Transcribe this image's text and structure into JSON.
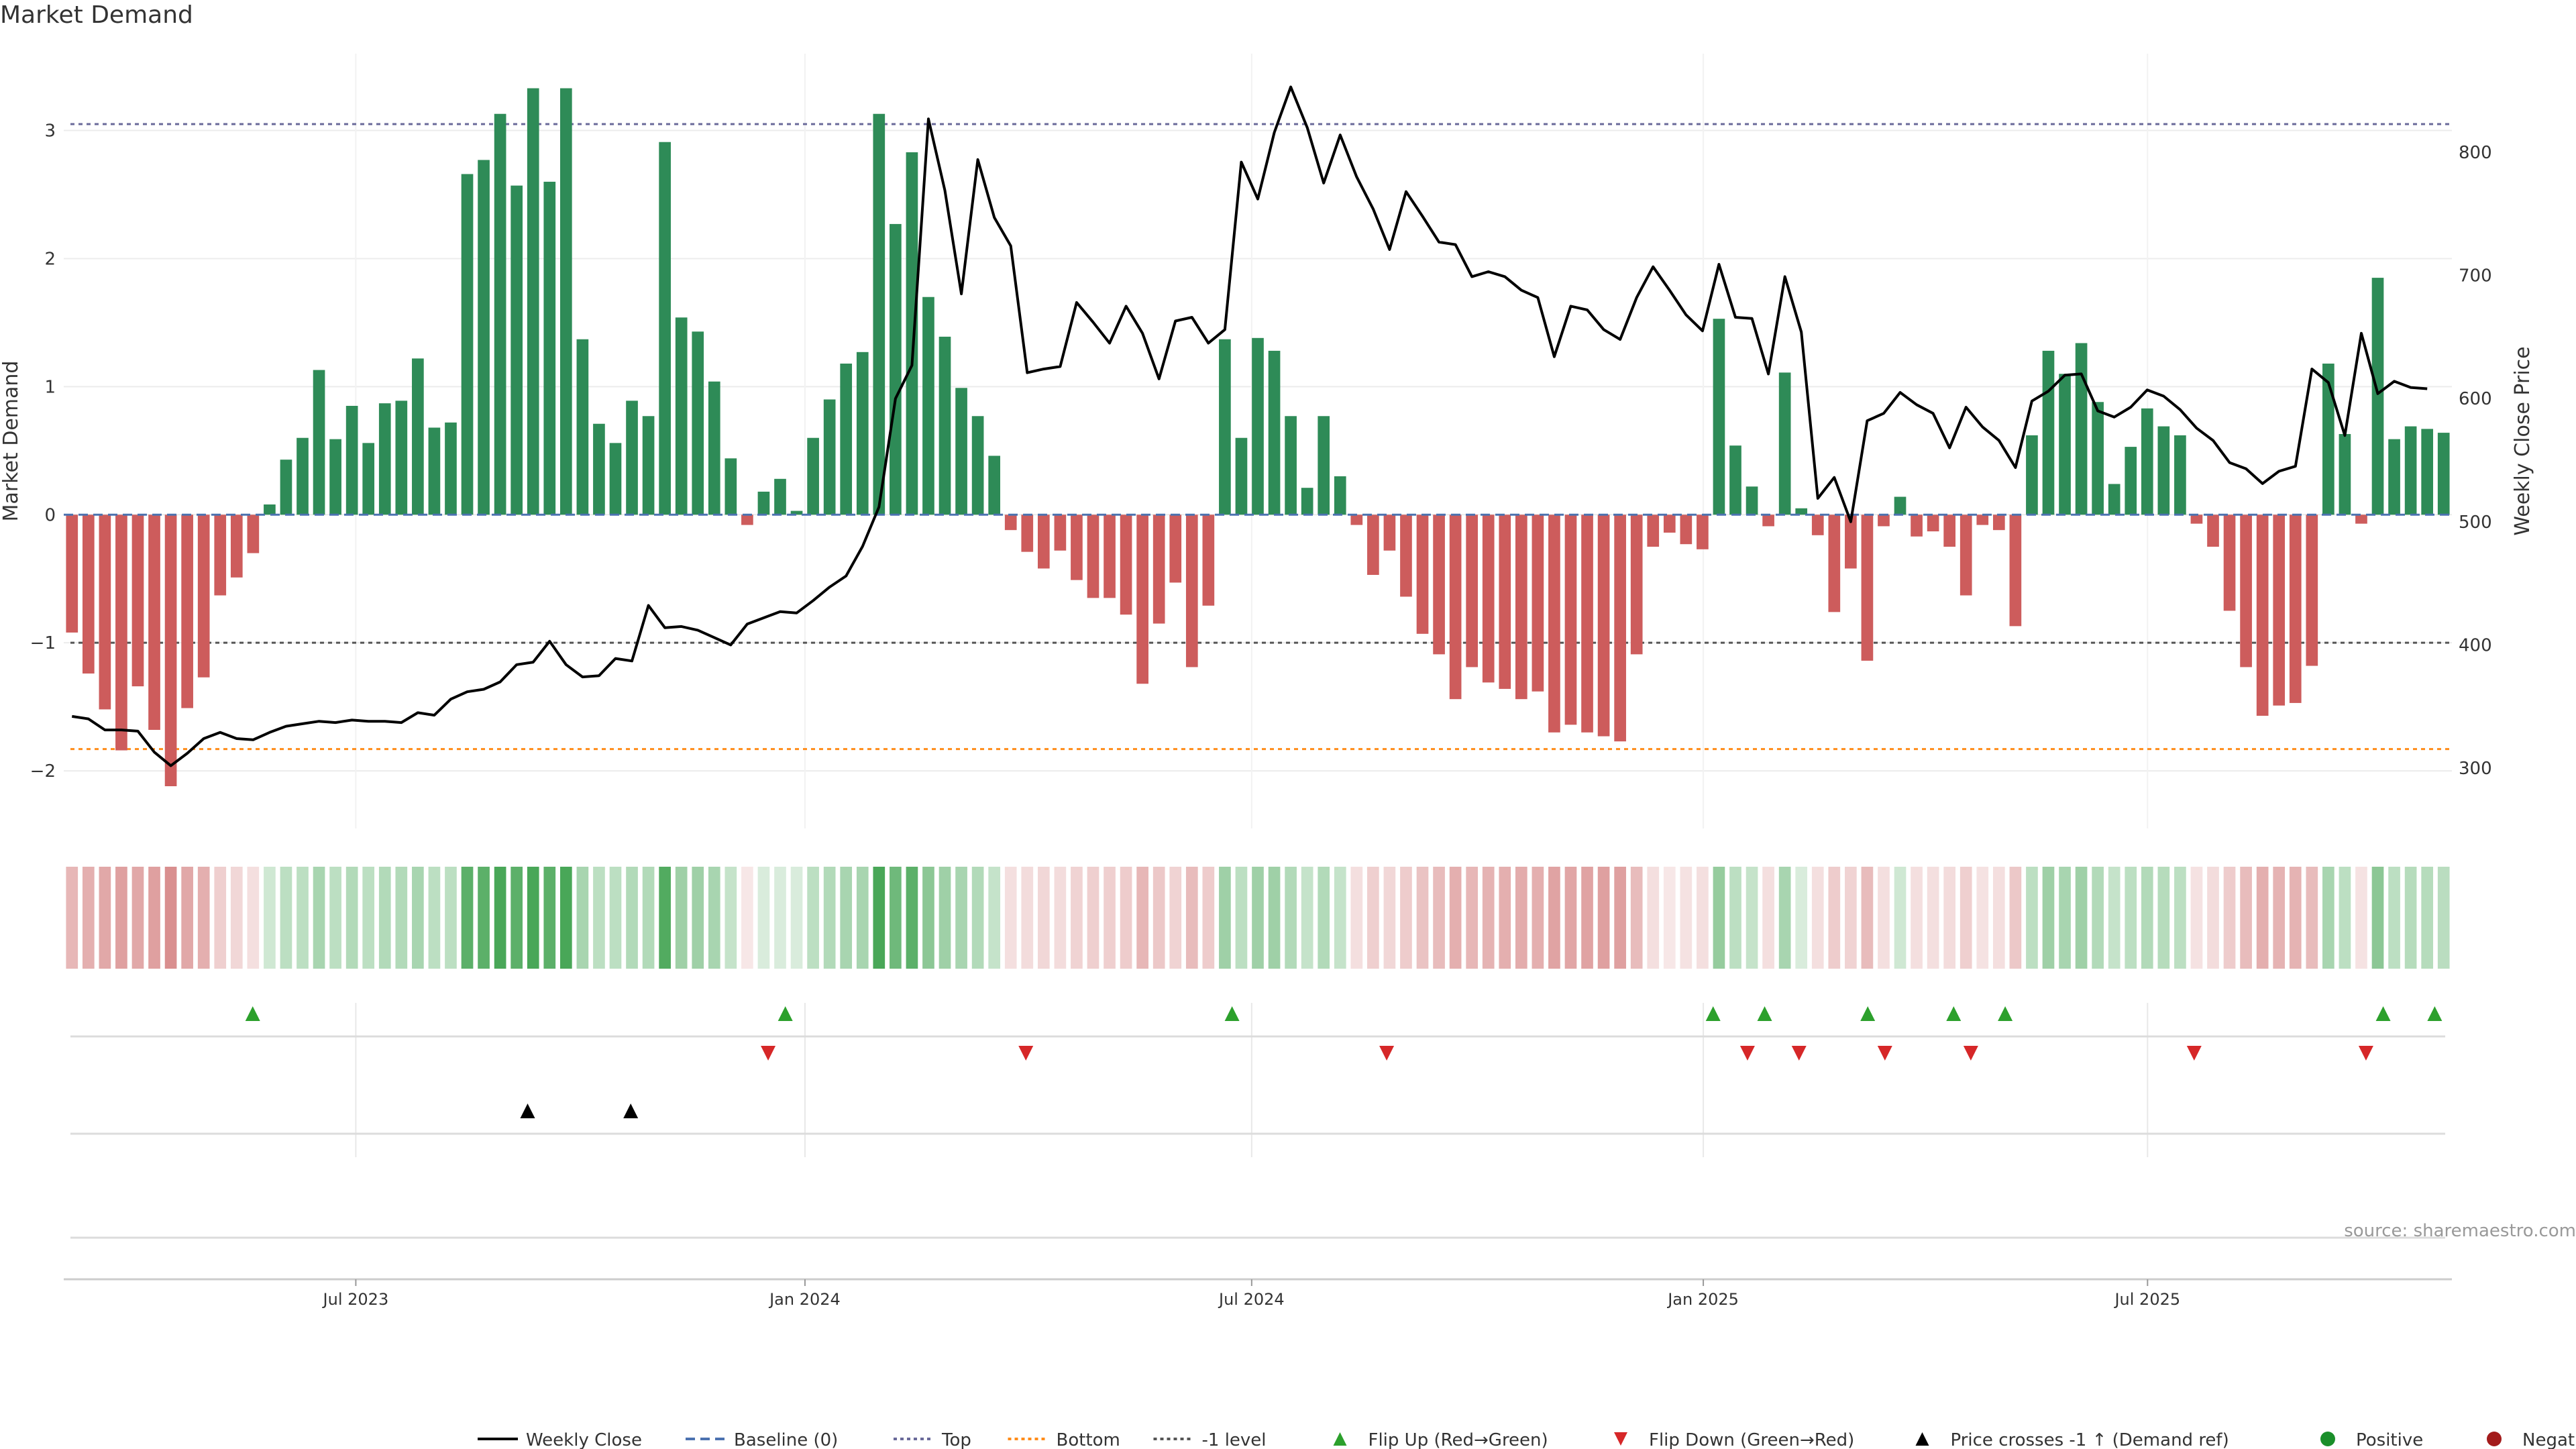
{
  "page": {
    "title": "Market Demand",
    "source": "source: sharemaestro.com"
  },
  "chart_data": {
    "type": "bar",
    "title": "Market Demand",
    "ylabel": "Market Demand",
    "y2label": "Weekly Close Price",
    "ylim": [
      -2.45,
      3.6
    ],
    "y2lim": [
      251,
      880
    ],
    "yticks": [
      -2,
      -1,
      0,
      1,
      2,
      3
    ],
    "y2ticks": [
      300,
      400,
      500,
      600,
      700,
      800
    ],
    "x_start": "2023-03-05",
    "x_end": "2025-11-02",
    "x_tick_labels": [
      {
        "date": "2023-07-02",
        "label": "Jul 2023"
      },
      {
        "date": "2024-01-01",
        "label": "Jan 2024"
      },
      {
        "date": "2024-07-01",
        "label": "Jul 2024"
      },
      {
        "date": "2025-01-01",
        "label": "Jan 2025"
      },
      {
        "date": "2025-07-01",
        "label": "Jul 2025"
      }
    ],
    "reference_lines": {
      "top": 3.05,
      "bottom": -1.83,
      "minus_one": -1.0,
      "baseline": 0
    },
    "first_week": "2023-03-05",
    "week_step_days": 7,
    "demand": [
      -0.92,
      -1.24,
      -1.52,
      -1.84,
      -1.34,
      -1.68,
      -2.12,
      -1.51,
      -1.27,
      -0.63,
      -0.49,
      -0.3,
      0.08,
      0.43,
      0.6,
      1.13,
      0.59,
      0.85,
      0.56,
      0.87,
      0.89,
      1.22,
      0.68,
      0.72,
      2.66,
      2.77,
      3.13,
      2.57,
      3.33,
      2.6,
      3.33,
      1.37,
      0.71,
      0.56,
      0.89,
      0.77,
      2.91,
      1.54,
      1.43,
      1.04,
      0.44,
      -0.08,
      0.18,
      0.28,
      0.03,
      0.6,
      0.9,
      1.18,
      1.27,
      3.13,
      2.27,
      2.83,
      1.7,
      1.39,
      0.99,
      0.77,
      0.46,
      -0.12,
      -0.29,
      -0.42,
      -0.28,
      -0.51,
      -0.65,
      -0.65,
      -0.78,
      -1.32,
      -0.85,
      -0.53,
      -1.19,
      -0.71,
      1.37,
      0.6,
      1.38,
      1.28,
      0.77,
      0.21,
      0.77,
      0.3,
      -0.08,
      -0.47,
      -0.28,
      -0.64,
      -0.93,
      -1.09,
      -1.44,
      -1.19,
      -1.31,
      -1.36,
      -1.44,
      -1.38,
      -1.7,
      -1.64,
      -1.7,
      -1.73,
      -1.77,
      -1.09,
      -0.25,
      -0.14,
      -0.23,
      -0.27,
      1.53,
      0.54,
      0.22,
      -0.09,
      1.11,
      0.05,
      -0.16,
      -0.76,
      -0.42,
      -1.14,
      -0.09,
      0.14,
      -0.17,
      -0.13,
      -0.25,
      -0.63,
      -0.08,
      -0.12,
      -0.87,
      0.62,
      1.28,
      1.1,
      1.34,
      0.88,
      0.24,
      0.53,
      0.83,
      0.69,
      0.62,
      -0.07,
      -0.25,
      -0.75,
      -1.19,
      -1.57,
      -1.49,
      -1.47,
      -1.18,
      1.18,
      0.63,
      -0.07,
      1.85,
      0.59,
      0.69,
      0.67,
      0.64
    ],
    "heat_intensity": [
      0.45,
      0.5,
      0.55,
      0.6,
      0.55,
      0.6,
      0.7,
      0.55,
      0.5,
      0.3,
      0.25,
      0.2,
      0.25,
      0.35,
      0.35,
      0.45,
      0.35,
      0.4,
      0.35,
      0.4,
      0.4,
      0.45,
      0.35,
      0.35,
      0.85,
      0.85,
      0.95,
      0.85,
      0.95,
      0.85,
      0.95,
      0.45,
      0.35,
      0.35,
      0.4,
      0.4,
      0.9,
      0.5,
      0.5,
      0.45,
      0.3,
      0.15,
      0.2,
      0.2,
      0.2,
      0.35,
      0.4,
      0.45,
      0.45,
      0.95,
      0.75,
      0.85,
      0.6,
      0.5,
      0.45,
      0.4,
      0.3,
      0.2,
      0.22,
      0.25,
      0.22,
      0.28,
      0.3,
      0.3,
      0.32,
      0.45,
      0.35,
      0.28,
      0.42,
      0.32,
      0.5,
      0.35,
      0.5,
      0.5,
      0.4,
      0.3,
      0.4,
      0.3,
      0.2,
      0.3,
      0.25,
      0.32,
      0.38,
      0.42,
      0.5,
      0.45,
      0.48,
      0.5,
      0.52,
      0.5,
      0.58,
      0.56,
      0.58,
      0.6,
      0.6,
      0.42,
      0.2,
      0.15,
      0.18,
      0.2,
      0.55,
      0.35,
      0.3,
      0.2,
      0.45,
      0.2,
      0.2,
      0.32,
      0.28,
      0.42,
      0.2,
      0.25,
      0.2,
      0.2,
      0.22,
      0.3,
      0.18,
      0.2,
      0.35,
      0.35,
      0.5,
      0.45,
      0.5,
      0.4,
      0.3,
      0.35,
      0.4,
      0.38,
      0.35,
      0.18,
      0.22,
      0.32,
      0.42,
      0.5,
      0.48,
      0.48,
      0.42,
      0.45,
      0.35,
      0.18,
      0.6,
      0.35,
      0.38,
      0.38,
      0.36
    ],
    "close": [
      342,
      340,
      331,
      331,
      330,
      313,
      302,
      312,
      324,
      329,
      324,
      323,
      329,
      334,
      336,
      338,
      337,
      339,
      338,
      338,
      337,
      345,
      343,
      356,
      362,
      364,
      370,
      384,
      386,
      403,
      384,
      374,
      375,
      389,
      387,
      432,
      414,
      415,
      412,
      406,
      400,
      417,
      422,
      427,
      426,
      436,
      447,
      456,
      480,
      512,
      600,
      627,
      827,
      769,
      685,
      794,
      747,
      724,
      621,
      624,
      626,
      678,
      662,
      645,
      675,
      653,
      616,
      663,
      666,
      645,
      656,
      792,
      762,
      816,
      853,
      820,
      775,
      814,
      780,
      754,
      721,
      768,
      748,
      727,
      725,
      699,
      703,
      699,
      688,
      682,
      634,
      675,
      672,
      656,
      648,
      682,
      707,
      688,
      668,
      655,
      709,
      666,
      665,
      620,
      699,
      654,
      519,
      536,
      500,
      582,
      588,
      605,
      595,
      588,
      560,
      593,
      577,
      566,
      544,
      598,
      606,
      619,
      620,
      590,
      585,
      593,
      607,
      602,
      591,
      576,
      566,
      548,
      543,
      531,
      541,
      545,
      624,
      613,
      570,
      653,
      604,
      614,
      609,
      608
    ],
    "flip_up_dates": [
      "2023-05-21",
      "2023-12-24",
      "2024-06-23",
      "2025-01-05",
      "2025-01-26",
      "2025-03-09",
      "2025-04-13",
      "2025-05-04",
      "2025-10-05",
      "2025-10-26"
    ],
    "flip_down_dates": [
      "2023-12-17",
      "2024-03-31",
      "2024-08-25",
      "2025-01-19",
      "2025-02-09",
      "2025-03-16",
      "2025-04-20",
      "2025-07-20",
      "2025-09-28"
    ],
    "price_cross_dates": [
      "2023-09-10",
      "2023-10-22"
    ],
    "legend": [
      {
        "label": "Weekly Close",
        "kind": "line",
        "color": "#000000"
      },
      {
        "label": "Baseline (0)",
        "kind": "dash",
        "color": "#4c72b0"
      },
      {
        "label": "Top",
        "kind": "dot",
        "color": "#6a6a9a"
      },
      {
        "label": "Bottom",
        "kind": "dot",
        "color": "#ff8c1a"
      },
      {
        "label": "-1 level",
        "kind": "dot",
        "color": "#555555"
      },
      {
        "label": "Flip Up (Red→Green)",
        "kind": "tri-up",
        "color": "#2ca02c"
      },
      {
        "label": "Flip Down (Green→Red)",
        "kind": "tri-down",
        "color": "#d62728"
      },
      {
        "label": "Price crosses -1 ↑ (Demand ref)",
        "kind": "tri-up",
        "color": "#000000"
      },
      {
        "label": "Positive",
        "kind": "dot-circle",
        "color": "#1a8f2a"
      },
      {
        "label": "Negative",
        "kind": "dot-circle",
        "color": "#a31b1b"
      }
    ],
    "colors": {
      "positive_bar": "#2e8b57",
      "negative_bar": "#cd5c5c",
      "heat_pos": "#3fa24f",
      "heat_neg": "#c96060"
    }
  }
}
